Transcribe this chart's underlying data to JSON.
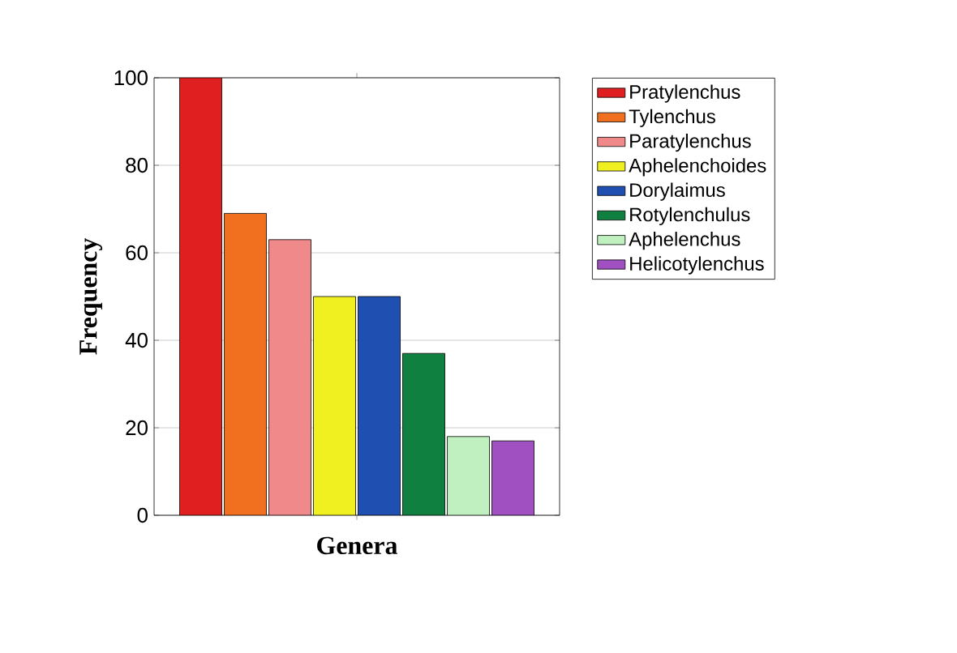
{
  "chart_data": {
    "type": "bar",
    "xlabel": "Genera",
    "ylabel": "Frequency",
    "categories": [
      null
    ],
    "series": [
      {
        "name": "Pratylenchus",
        "color": "#e02020",
        "values": [
          100
        ]
      },
      {
        "name": "Tylenchus",
        "color": "#f07020",
        "values": [
          69
        ]
      },
      {
        "name": "Paratylenchus",
        "color": "#f08a8a",
        "values": [
          63
        ]
      },
      {
        "name": "Aphelenchoides",
        "color": "#f0f020",
        "values": [
          50
        ]
      },
      {
        "name": "Dorylaimus",
        "color": "#1f4fb0",
        "values": [
          50
        ]
      },
      {
        "name": "Rotylenchulus",
        "color": "#108040",
        "values": [
          37
        ]
      },
      {
        "name": "Aphelenchus",
        "color": "#c0f0c0",
        "values": [
          18
        ]
      },
      {
        "name": "Helicotylenchus",
        "color": "#a050c0",
        "values": [
          17
        ]
      }
    ],
    "ylim": [
      0,
      100
    ],
    "yticks": [
      0,
      20,
      40,
      60,
      80,
      100
    ],
    "grid": "y",
    "legend": "right"
  }
}
